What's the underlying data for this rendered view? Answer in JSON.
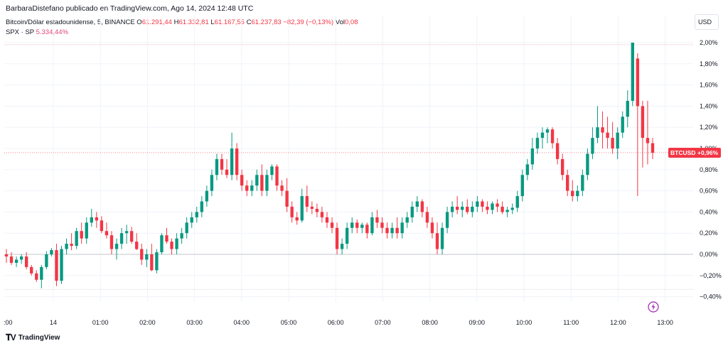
{
  "header": {
    "publisher_line": "BarbaraDistefano publicado en TradingView.com, Ago 14, 2024 12:48 UTC"
  },
  "symbol": {
    "name": "Bitcoin/Dólar estadounidense, 5, BINANCE",
    "o_label": "O",
    "o": "61.291,44",
    "h_label": "H",
    "h": "61.332,81",
    "l_label": "L",
    "l": "61.167,55",
    "c_label": "C",
    "c": "61.237,83",
    "change": "−82,39 (−0,13%)",
    "vol_label": "Vol",
    "vol": "0,08"
  },
  "compare": {
    "name": "SPX · SP",
    "value": "5.334,44%"
  },
  "currency": "USD",
  "price_tag": {
    "symbol": "BTCUSD",
    "value": "+0,96%"
  },
  "footer": {
    "brand": "TradingView"
  },
  "colors": {
    "up": "#089981",
    "down": "#f23645",
    "grid": "#f0f3fa",
    "spx": "#e0457b"
  },
  "chart_data": {
    "type": "candlestick",
    "y_unit": "percent",
    "y_ticks": [
      "2,00%",
      "1,80%",
      "1,60%",
      "1,40%",
      "1,20%",
      "1,00%",
      "0,80%",
      "0,60%",
      "0,40%",
      "0,20%",
      "0,00%",
      "−0,20%",
      "−0,40%"
    ],
    "y_tick_values": [
      2.0,
      1.8,
      1.6,
      1.4,
      1.2,
      1.0,
      0.8,
      0.6,
      0.4,
      0.2,
      0.0,
      -0.2,
      -0.4
    ],
    "ylim": [
      -0.45,
      2.2
    ],
    "x_ticks": [
      ":00",
      "14",
      "01:00",
      "02:00",
      "03:00",
      "04:00",
      "05:00",
      "06:00",
      "07:00",
      "08:00",
      "09:00",
      "10:00",
      "11:00",
      "12:00",
      "13:00"
    ],
    "x_tick_hours": [
      -1,
      0,
      1,
      2,
      3,
      4,
      5,
      6,
      7,
      8,
      9,
      10,
      11,
      12,
      13
    ],
    "last_value": 0.96,
    "candles": [
      [
        0.0,
        0.05,
        -0.08,
        -0.02
      ],
      [
        -0.02,
        0.02,
        -0.1,
        -0.08
      ],
      [
        -0.08,
        -0.02,
        -0.12,
        -0.05
      ],
      [
        -0.05,
        0.0,
        -0.09,
        -0.02
      ],
      [
        -0.02,
        0.02,
        -0.14,
        -0.12
      ],
      [
        -0.12,
        -0.1,
        -0.2,
        -0.18
      ],
      [
        -0.18,
        -0.15,
        -0.26,
        -0.24
      ],
      [
        -0.24,
        -0.1,
        -0.32,
        -0.12
      ],
      [
        -0.12,
        0.03,
        -0.14,
        0.0
      ],
      [
        0.0,
        0.06,
        -0.02,
        0.04
      ],
      [
        0.04,
        0.1,
        -0.3,
        -0.25
      ],
      [
        -0.25,
        0.08,
        -0.28,
        0.05
      ],
      [
        0.05,
        0.15,
        0.0,
        0.1
      ],
      [
        0.1,
        0.2,
        0.04,
        0.08
      ],
      [
        0.08,
        0.25,
        0.05,
        0.22
      ],
      [
        0.22,
        0.3,
        0.1,
        0.15
      ],
      [
        0.15,
        0.35,
        0.1,
        0.3
      ],
      [
        0.3,
        0.43,
        0.26,
        0.35
      ],
      [
        0.35,
        0.4,
        0.25,
        0.32
      ],
      [
        0.32,
        0.36,
        0.2,
        0.22
      ],
      [
        0.22,
        0.3,
        0.15,
        0.18
      ],
      [
        0.18,
        0.22,
        0.0,
        0.05
      ],
      [
        0.05,
        0.15,
        -0.05,
        0.1
      ],
      [
        0.1,
        0.25,
        0.05,
        0.2
      ],
      [
        0.2,
        0.28,
        0.1,
        0.22
      ],
      [
        0.22,
        0.26,
        0.1,
        0.12
      ],
      [
        0.12,
        0.2,
        0.04,
        0.05
      ],
      [
        0.05,
        0.1,
        -0.1,
        -0.05
      ],
      [
        -0.05,
        0.05,
        -0.12,
        0.0
      ],
      [
        0.0,
        0.1,
        -0.16,
        -0.15
      ],
      [
        -0.15,
        0.05,
        -0.18,
        0.02
      ],
      [
        0.02,
        0.2,
        0.0,
        0.18
      ],
      [
        0.18,
        0.25,
        0.1,
        0.12
      ],
      [
        0.12,
        0.15,
        0.0,
        0.05
      ],
      [
        0.05,
        0.2,
        0.0,
        0.15
      ],
      [
        0.15,
        0.25,
        0.1,
        0.2
      ],
      [
        0.2,
        0.35,
        0.15,
        0.3
      ],
      [
        0.3,
        0.4,
        0.25,
        0.35
      ],
      [
        0.35,
        0.45,
        0.3,
        0.4
      ],
      [
        0.4,
        0.55,
        0.35,
        0.5
      ],
      [
        0.5,
        0.65,
        0.45,
        0.6
      ],
      [
        0.6,
        0.8,
        0.55,
        0.75
      ],
      [
        0.75,
        0.95,
        0.7,
        0.9
      ],
      [
        0.9,
        0.95,
        0.75,
        0.8
      ],
      [
        0.8,
        0.9,
        0.72,
        0.75
      ],
      [
        0.75,
        1.15,
        0.7,
        1.0
      ],
      [
        1.0,
        1.05,
        0.7,
        0.75
      ],
      [
        0.75,
        0.8,
        0.6,
        0.65
      ],
      [
        0.65,
        0.7,
        0.55,
        0.6
      ],
      [
        0.6,
        0.7,
        0.55,
        0.65
      ],
      [
        0.65,
        0.8,
        0.6,
        0.75
      ],
      [
        0.75,
        0.85,
        0.55,
        0.6
      ],
      [
        0.6,
        0.8,
        0.55,
        0.75
      ],
      [
        0.75,
        0.85,
        0.7,
        0.83
      ],
      [
        0.83,
        0.85,
        0.6,
        0.65
      ],
      [
        0.65,
        0.7,
        0.55,
        0.6
      ],
      [
        0.6,
        0.72,
        0.4,
        0.45
      ],
      [
        0.45,
        0.5,
        0.3,
        0.35
      ],
      [
        0.35,
        0.4,
        0.28,
        0.32
      ],
      [
        0.32,
        0.62,
        0.3,
        0.55
      ],
      [
        0.55,
        0.65,
        0.4,
        0.45
      ],
      [
        0.45,
        0.5,
        0.38,
        0.43
      ],
      [
        0.43,
        0.48,
        0.35,
        0.4
      ],
      [
        0.4,
        0.45,
        0.3,
        0.35
      ],
      [
        0.35,
        0.4,
        0.25,
        0.3
      ],
      [
        0.3,
        0.35,
        0.2,
        0.25
      ],
      [
        0.25,
        0.3,
        0.0,
        0.05
      ],
      [
        0.05,
        0.15,
        0.0,
        0.1
      ],
      [
        0.1,
        0.3,
        0.05,
        0.25
      ],
      [
        0.25,
        0.35,
        0.2,
        0.3
      ],
      [
        0.3,
        0.33,
        0.2,
        0.25
      ],
      [
        0.25,
        0.3,
        0.2,
        0.28
      ],
      [
        0.28,
        0.3,
        0.15,
        0.2
      ],
      [
        0.2,
        0.4,
        0.18,
        0.35
      ],
      [
        0.35,
        0.42,
        0.25,
        0.3
      ],
      [
        0.3,
        0.35,
        0.2,
        0.25
      ],
      [
        0.25,
        0.3,
        0.15,
        0.2
      ],
      [
        0.2,
        0.3,
        0.15,
        0.25
      ],
      [
        0.25,
        0.35,
        0.15,
        0.2
      ],
      [
        0.2,
        0.35,
        0.15,
        0.3
      ],
      [
        0.3,
        0.4,
        0.25,
        0.35
      ],
      [
        0.35,
        0.5,
        0.3,
        0.45
      ],
      [
        0.45,
        0.55,
        0.4,
        0.5
      ],
      [
        0.5,
        0.52,
        0.35,
        0.4
      ],
      [
        0.4,
        0.45,
        0.25,
        0.3
      ],
      [
        0.3,
        0.35,
        0.15,
        0.2
      ],
      [
        0.2,
        0.3,
        0.0,
        0.05
      ],
      [
        0.05,
        0.3,
        0.0,
        0.25
      ],
      [
        0.25,
        0.45,
        0.2,
        0.4
      ],
      [
        0.4,
        0.5,
        0.35,
        0.45
      ],
      [
        0.45,
        0.55,
        0.38,
        0.42
      ],
      [
        0.42,
        0.5,
        0.35,
        0.45
      ],
      [
        0.45,
        0.52,
        0.38,
        0.4
      ],
      [
        0.4,
        0.5,
        0.35,
        0.45
      ],
      [
        0.45,
        0.55,
        0.4,
        0.5
      ],
      [
        0.5,
        0.52,
        0.4,
        0.45
      ],
      [
        0.45,
        0.5,
        0.38,
        0.42
      ],
      [
        0.42,
        0.5,
        0.38,
        0.48
      ],
      [
        0.48,
        0.52,
        0.4,
        0.45
      ],
      [
        0.45,
        0.5,
        0.38,
        0.4
      ],
      [
        0.4,
        0.45,
        0.35,
        0.42
      ],
      [
        0.42,
        0.48,
        0.38,
        0.44
      ],
      [
        0.44,
        0.6,
        0.4,
        0.55
      ],
      [
        0.55,
        0.8,
        0.5,
        0.75
      ],
      [
        0.75,
        0.9,
        0.7,
        0.85
      ],
      [
        0.85,
        1.1,
        0.8,
        1.0
      ],
      [
        1.0,
        1.15,
        0.95,
        1.1
      ],
      [
        1.1,
        1.2,
        1.0,
        1.15
      ],
      [
        1.15,
        1.2,
        1.05,
        1.18
      ],
      [
        1.18,
        1.2,
        1.0,
        1.05
      ],
      [
        1.05,
        1.1,
        0.85,
        0.9
      ],
      [
        0.9,
        0.95,
        0.7,
        0.75
      ],
      [
        0.75,
        0.8,
        0.55,
        0.6
      ],
      [
        0.6,
        0.7,
        0.5,
        0.55
      ],
      [
        0.55,
        0.65,
        0.5,
        0.6
      ],
      [
        0.6,
        0.8,
        0.55,
        0.75
      ],
      [
        0.75,
        1.0,
        0.7,
        0.95
      ],
      [
        0.95,
        1.2,
        0.9,
        1.1
      ],
      [
        1.1,
        1.4,
        1.05,
        1.2
      ],
      [
        1.2,
        1.35,
        1.0,
        1.15
      ],
      [
        1.15,
        1.3,
        1.0,
        1.1
      ],
      [
        1.1,
        1.25,
        0.95,
        1.0
      ],
      [
        1.0,
        1.2,
        0.9,
        1.15
      ],
      [
        1.15,
        1.35,
        1.1,
        1.3
      ],
      [
        1.3,
        1.55,
        1.2,
        1.45
      ],
      [
        1.45,
        2.0,
        1.4,
        2.0
      ],
      [
        1.85,
        1.9,
        0.55,
        1.4
      ],
      [
        1.4,
        1.45,
        0.82,
        1.1
      ],
      [
        1.1,
        1.45,
        0.85,
        1.05
      ],
      [
        1.05,
        1.1,
        0.9,
        0.96
      ]
    ]
  }
}
